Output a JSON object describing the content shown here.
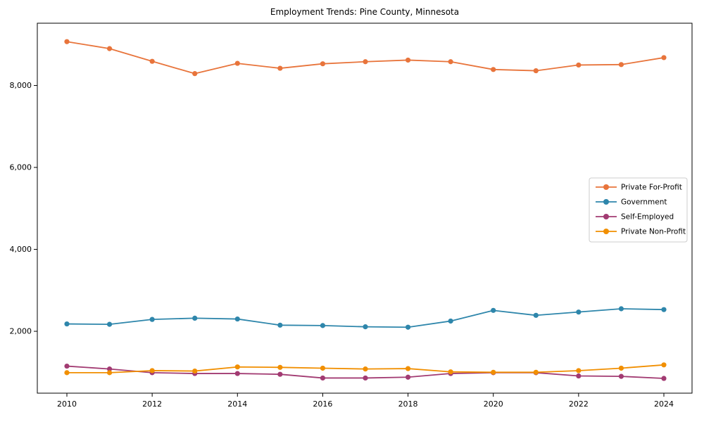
{
  "figure": {
    "background": "#ffffff",
    "axes_edge_color": "#000000",
    "tick_label_color": "#000000"
  },
  "chart_data": {
    "type": "line",
    "title": "Employment Trends: Pine County, Minnesota",
    "xlabel": "",
    "ylabel": "",
    "grid": false,
    "legend_position": "center right",
    "marker": "circle",
    "x": [
      2010,
      2011,
      2012,
      2013,
      2014,
      2015,
      2016,
      2017,
      2018,
      2019,
      2020,
      2021,
      2022,
      2023,
      2024
    ],
    "xticks": [
      2010,
      2012,
      2014,
      2016,
      2018,
      2020,
      2022,
      2024
    ],
    "xtick_labels": [
      "2010",
      "2012",
      "2014",
      "2016",
      "2018",
      "2020",
      "2022",
      "2024"
    ],
    "yticks": [
      2000,
      4000,
      6000,
      8000
    ],
    "ytick_labels": [
      "2,000",
      "4,000",
      "6,000",
      "8,000"
    ],
    "ylim": [
      490,
      9520
    ],
    "xlim": [
      2009.3,
      2024.66
    ],
    "series": [
      {
        "name": "Private For-Profit",
        "color": "#E8743B",
        "values": [
          9070,
          8900,
          8590,
          8290,
          8540,
          8420,
          8530,
          8580,
          8620,
          8580,
          8390,
          8360,
          8500,
          8510,
          8680
        ]
      },
      {
        "name": "Government",
        "color": "#2E86AB",
        "values": [
          2180,
          2170,
          2290,
          2320,
          2300,
          2150,
          2140,
          2110,
          2100,
          2250,
          2510,
          2390,
          2470,
          2550,
          2530
        ]
      },
      {
        "name": "Self-Employed",
        "color": "#A23B72",
        "values": [
          1150,
          1080,
          990,
          970,
          970,
          950,
          860,
          860,
          880,
          970,
          990,
          990,
          910,
          900,
          850
        ]
      },
      {
        "name": "Private Non-Profit",
        "color": "#F18F01",
        "values": [
          990,
          990,
          1040,
          1030,
          1130,
          1120,
          1100,
          1080,
          1090,
          1010,
          1000,
          1000,
          1040,
          1100,
          1180
        ]
      }
    ]
  }
}
